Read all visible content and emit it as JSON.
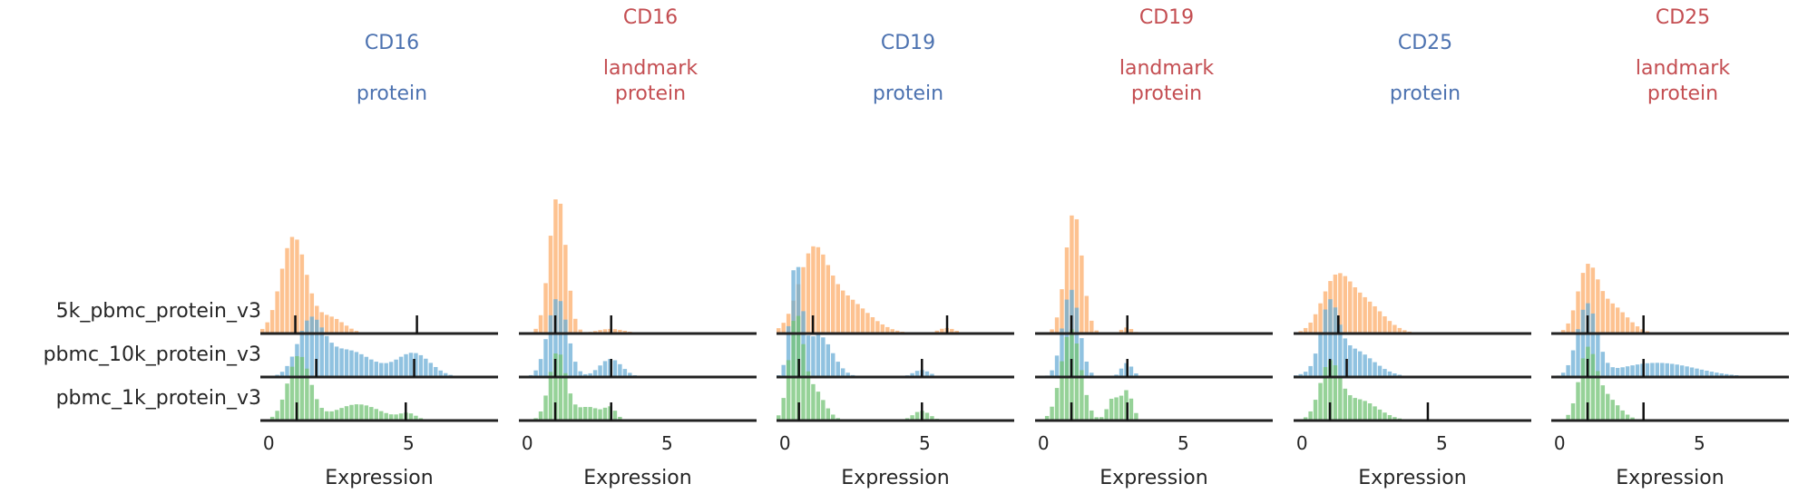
{
  "chart_data": {
    "type": "histogram",
    "xlabel": "Expression",
    "xticks": [
      0,
      5
    ],
    "xlim": [
      -0.3,
      8.2
    ],
    "rows": [
      "5k_pbmc_protein_v3",
      "pbmc_10k_protein_v3",
      "pbmc_1k_protein_v3"
    ],
    "colors": {
      "5k_pbmc_protein_v3": "#fdae6b",
      "pbmc_10k_protein_v3": "#6baed6",
      "pbmc_1k_protein_v3": "#74c476",
      "protein_title": "#4C72B0",
      "landmark_title": "#C44E52"
    },
    "panels": [
      {
        "title_lines": [
          "CD16",
          "",
          "protein"
        ],
        "title_color": "protein_title",
        "markers": [
          [
            0.95,
            5.3
          ],
          [
            1.7,
            5.2
          ],
          [
            1.0,
            4.9
          ]
        ],
        "hist": [
          {
            "peaks": [
              [
                0.9,
                0.45,
                2.4
              ],
              [
                2.2,
                0.5,
                0.4
              ],
              [
                5.0,
                0.6,
                0.03
              ]
            ],
            "max": 0.72
          },
          {
            "peaks": [
              [
                1.5,
                0.45,
                1.5
              ],
              [
                2.8,
                0.9,
                0.8
              ],
              [
                5.2,
                0.6,
                0.7
              ]
            ],
            "max": 0.45
          },
          {
            "peaks": [
              [
                1.1,
                0.4,
                2.0
              ],
              [
                3.2,
                0.8,
                0.5
              ],
              [
                5.0,
                0.3,
                0.2
              ]
            ],
            "max": 0.48
          }
        ]
      },
      {
        "title_lines": [
          "CD16",
          "landmark",
          "protein"
        ],
        "title_color": "landmark_title",
        "markers": [
          [
            1.0,
            3.0
          ],
          [
            1.0,
            3.0
          ],
          [
            1.0,
            3.0
          ]
        ],
        "hist": [
          {
            "peaks": [
              [
                1.1,
                0.3,
                3.0
              ],
              [
                3.0,
                0.5,
                0.1
              ]
            ],
            "max": 1.0
          },
          {
            "peaks": [
              [
                1.1,
                0.35,
                2.2
              ],
              [
                3.0,
                0.4,
                0.5
              ]
            ],
            "max": 0.58
          },
          {
            "peaks": [
              [
                1.1,
                0.3,
                2.0
              ],
              [
                2.2,
                0.5,
                0.4
              ],
              [
                3.0,
                0.2,
                0.3
              ]
            ],
            "max": 0.5
          }
        ]
      },
      {
        "title_lines": [
          "CD19",
          "",
          "protein"
        ],
        "title_color": "protein_title",
        "markers": [
          [
            1.0,
            5.8
          ],
          [
            0.5,
            4.9
          ],
          [
            0.5,
            4.9
          ]
        ],
        "hist": [
          {
            "peaks": [
              [
                1.0,
                0.5,
                1.8
              ],
              [
                2.0,
                0.9,
                1.0
              ],
              [
                5.8,
                0.3,
                0.15
              ]
            ],
            "max": 0.65
          },
          {
            "peaks": [
              [
                0.4,
                0.2,
                3.0
              ],
              [
                1.2,
                0.5,
                1.2
              ],
              [
                4.9,
                0.3,
                0.2
              ]
            ],
            "max": 0.82
          },
          {
            "peaks": [
              [
                0.4,
                0.25,
                3.0
              ],
              [
                1.0,
                0.4,
                1.0
              ],
              [
                4.9,
                0.3,
                0.3
              ]
            ],
            "max": 0.78
          }
        ]
      },
      {
        "title_lines": [
          "CD19",
          "landmark",
          "protein"
        ],
        "title_color": "landmark_title",
        "markers": [
          [
            1.0,
            3.0
          ],
          [
            1.0,
            3.0
          ],
          [
            1.0,
            3.0
          ]
        ],
        "hist": [
          {
            "peaks": [
              [
                1.1,
                0.3,
                3.0
              ],
              [
                3.0,
                0.2,
                0.15
              ]
            ],
            "max": 0.88
          },
          {
            "peaks": [
              [
                1.0,
                0.3,
                2.5
              ],
              [
                3.0,
                0.2,
                0.4
              ]
            ],
            "max": 0.65
          },
          {
            "peaks": [
              [
                1.0,
                0.35,
                2.5
              ],
              [
                2.5,
                0.2,
                0.6
              ],
              [
                3.0,
                0.2,
                0.8
              ]
            ],
            "max": 0.68
          }
        ]
      },
      {
        "title_lines": [
          "CD25",
          "",
          "protein"
        ],
        "title_color": "protein_title",
        "markers": [
          [
            1.3,
            1.3
          ],
          [
            1.0,
            1.6
          ],
          [
            1.0,
            4.5
          ]
        ],
        "hist": [
          {
            "peaks": [
              [
                1.2,
                0.5,
                1.5
              ],
              [
                2.2,
                0.7,
                1.0
              ]
            ],
            "max": 0.45
          },
          {
            "peaks": [
              [
                1.0,
                0.3,
                2.0
              ],
              [
                1.7,
                0.8,
                1.0
              ]
            ],
            "max": 0.58
          },
          {
            "peaks": [
              [
                1.0,
                0.35,
                2.0
              ],
              [
                2.0,
                0.7,
                0.8
              ]
            ],
            "max": 0.45
          }
        ]
      },
      {
        "title_lines": [
          "CD25",
          "",
          ""
        ],
        "title_color": "landmark_title",
        "extra_title_lines": [
          "landmark",
          "protein"
        ],
        "markers": [
          [
            1.0,
            3.0
          ],
          [
            1.0,
            3.0
          ],
          [
            1.0,
            3.0
          ]
        ],
        "hist": [
          {
            "peaks": [
              [
                1.0,
                0.35,
                2.0
              ],
              [
                1.8,
                0.6,
                1.0
              ]
            ],
            "max": 0.52
          },
          {
            "peaks": [
              [
                1.0,
                0.35,
                2.0
              ],
              [
                3.5,
                1.4,
                0.4
              ]
            ],
            "max": 0.55
          },
          {
            "peaks": [
              [
                1.0,
                0.3,
                2.0
              ],
              [
                1.6,
                0.5,
                0.8
              ]
            ],
            "max": 0.55
          }
        ]
      }
    ]
  }
}
